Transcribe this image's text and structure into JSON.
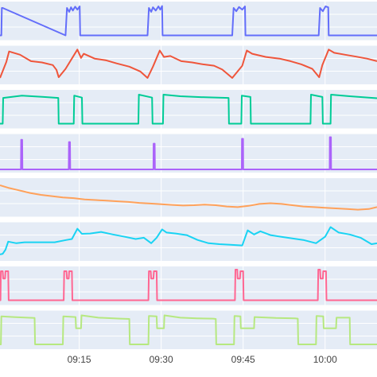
{
  "chart_data": {
    "type": "line",
    "title": "",
    "xlabel": "",
    "ylabel": "",
    "x_axis": {
      "type": "time",
      "range": [
        "09:00:30",
        "10:09:30"
      ],
      "tick_times": [
        "09:15:00",
        "09:30:00",
        "09:45:00",
        "10:00:00"
      ],
      "tick_labels": [
        "09:15",
        "09:30",
        "09:45",
        "10:00"
      ]
    },
    "background": "#e5ecf6",
    "gridlines": true,
    "legend": "none",
    "panels": [
      {
        "color": "#636efa",
        "ylim": [
          0,
          1
        ],
        "x": [
          "09:00:30",
          "09:00:45",
          "09:00:50",
          "09:01:00",
          "09:12:30",
          "09:12:45",
          "09:13:10",
          "09:13:30",
          "09:13:50",
          "09:14:15",
          "09:14:40",
          "09:15:05",
          "09:15:10",
          "09:15:25",
          "09:27:30",
          "09:27:45",
          "09:28:10",
          "09:28:30",
          "09:29:00",
          "09:29:30",
          "09:29:50",
          "09:30:10",
          "09:30:15",
          "09:30:30",
          "09:43:00",
          "09:43:15",
          "09:43:45",
          "09:44:15",
          "09:44:50",
          "09:45:20",
          "09:45:25",
          "09:45:40",
          "09:58:50",
          "09:59:05",
          "09:59:35",
          "10:00:05",
          "10:00:35",
          "10:00:40",
          "10:00:55",
          "10:09:30"
        ],
        "y": [
          0.05,
          0.05,
          0.9,
          0.9,
          0.05,
          0.9,
          0.78,
          0.92,
          0.82,
          0.94,
          0.85,
          0.95,
          0.05,
          0.05,
          0.05,
          0.9,
          0.78,
          0.92,
          0.82,
          0.95,
          0.85,
          0.96,
          0.05,
          0.05,
          0.05,
          0.9,
          0.8,
          0.93,
          0.85,
          0.95,
          0.05,
          0.05,
          0.05,
          0.9,
          0.8,
          0.95,
          0.92,
          0.05,
          0.05,
          0.05
        ]
      },
      {
        "color": "#ef553b",
        "ylim": [
          0,
          1
        ],
        "x": [
          "09:00:30",
          "09:01:40",
          "09:02:10",
          "09:04:10",
          "09:06:10",
          "09:08:10",
          "09:10:10",
          "09:10:50",
          "09:11:15",
          "09:12:30",
          "09:14:40",
          "09:15:20",
          "09:15:50",
          "09:17:50",
          "09:19:50",
          "09:21:50",
          "09:24:10",
          "09:26:10",
          "09:27:30",
          "09:28:30",
          "09:29:45",
          "09:30:30",
          "09:31:40",
          "09:33:40",
          "09:35:40",
          "09:37:40",
          "09:39:40",
          "09:41:10",
          "09:43:00",
          "09:44:50",
          "09:45:40",
          "09:46:40",
          "09:49:10",
          "09:51:40",
          "09:53:40",
          "09:55:40",
          "09:57:40",
          "09:58:55",
          "09:59:30",
          "10:00:40",
          "10:01:40",
          "10:03:40",
          "10:05:40",
          "10:07:40",
          "10:09:30"
        ],
        "y": [
          0.1,
          0.6,
          0.92,
          0.82,
          0.62,
          0.58,
          0.5,
          0.35,
          0.12,
          0.38,
          0.98,
          0.72,
          0.85,
          0.7,
          0.65,
          0.55,
          0.45,
          0.3,
          0.1,
          0.45,
          0.95,
          0.75,
          0.78,
          0.62,
          0.58,
          0.52,
          0.48,
          0.36,
          0.1,
          0.48,
          0.95,
          0.85,
          0.75,
          0.7,
          0.62,
          0.52,
          0.38,
          0.12,
          0.5,
          0.98,
          0.88,
          0.82,
          0.76,
          0.7,
          0.62
        ]
      },
      {
        "color": "#00cc96",
        "ylim": [
          0,
          1
        ],
        "x": [
          "09:00:30",
          "09:01:00",
          "09:01:05",
          "09:04:30",
          "09:08:30",
          "09:11:10",
          "09:11:15",
          "09:14:00",
          "09:14:05",
          "09:15:30",
          "09:15:35",
          "09:18:00",
          "09:22:00",
          "09:25:50",
          "09:25:55",
          "09:28:20",
          "09:28:25",
          "09:30:20",
          "09:30:25",
          "09:33:30",
          "09:38:00",
          "09:42:20",
          "09:42:25",
          "09:44:40",
          "09:44:45",
          "09:46:20",
          "09:46:25",
          "09:48:30",
          "09:53:00",
          "09:57:20",
          "09:57:25",
          "09:59:30",
          "09:59:35",
          "10:01:00",
          "10:01:05",
          "10:04:30",
          "10:09:30"
        ],
        "y": [
          0.05,
          0.05,
          0.85,
          0.92,
          0.88,
          0.85,
          0.05,
          0.05,
          0.92,
          0.86,
          0.05,
          0.05,
          0.05,
          0.05,
          0.95,
          0.86,
          0.05,
          0.05,
          0.95,
          0.9,
          0.87,
          0.85,
          0.05,
          0.05,
          0.92,
          0.88,
          0.05,
          0.05,
          0.05,
          0.05,
          0.95,
          0.88,
          0.05,
          0.05,
          0.95,
          0.9,
          0.84
        ]
      },
      {
        "color": "#ab63fa",
        "ylim": [
          0,
          1
        ],
        "x": [
          "09:00:30",
          "09:04:20",
          "09:04:22",
          "09:04:34",
          "09:04:36",
          "09:13:05",
          "09:13:07",
          "09:13:19",
          "09:13:21",
          "09:28:35",
          "09:28:37",
          "09:28:49",
          "09:28:51",
          "09:44:45",
          "09:44:47",
          "09:44:59",
          "09:45:01",
          "10:00:50",
          "10:00:52",
          "10:01:04",
          "10:01:06",
          "10:09:30"
        ],
        "y": [
          0,
          0,
          0.92,
          0.92,
          0,
          0,
          0.85,
          0.85,
          0,
          0,
          0.8,
          0.8,
          0,
          0,
          0.95,
          0.95,
          0,
          0,
          1,
          1,
          0,
          0
        ]
      },
      {
        "color": "#ffa15a",
        "ylim": [
          0,
          1
        ],
        "x": [
          "09:00:30",
          "09:02:00",
          "09:04:00",
          "09:06:00",
          "09:08:00",
          "09:10:00",
          "09:12:00",
          "09:14:00",
          "09:16:00",
          "09:18:00",
          "09:20:00",
          "09:22:00",
          "09:24:00",
          "09:26:00",
          "09:28:00",
          "09:30:00",
          "09:32:00",
          "09:34:00",
          "09:36:00",
          "09:38:00",
          "09:40:00",
          "09:42:00",
          "09:44:00",
          "09:46:00",
          "09:48:00",
          "09:50:00",
          "09:52:00",
          "09:54:00",
          "09:56:00",
          "09:58:00",
          "10:00:00",
          "10:02:00",
          "10:04:00",
          "10:06:00",
          "10:08:00",
          "10:09:30"
        ],
        "y": [
          0.88,
          0.8,
          0.72,
          0.64,
          0.58,
          0.54,
          0.5,
          0.48,
          0.44,
          0.42,
          0.4,
          0.38,
          0.36,
          0.33,
          0.31,
          0.29,
          0.27,
          0.25,
          0.26,
          0.28,
          0.26,
          0.22,
          0.2,
          0.24,
          0.3,
          0.32,
          0.3,
          0.26,
          0.22,
          0.2,
          0.18,
          0.16,
          0.14,
          0.12,
          0.14,
          0.2
        ]
      },
      {
        "color": "#19d3f3",
        "ylim": [
          0,
          1
        ],
        "x": [
          "09:00:30",
          "09:01:00",
          "09:01:30",
          "09:02:00",
          "09:03:30",
          "09:05:00",
          "09:06:30",
          "09:08:00",
          "09:09:10",
          "09:10:30",
          "09:12:40",
          "09:13:40",
          "09:14:40",
          "09:15:30",
          "09:17:00",
          "09:19:00",
          "09:21:10",
          "09:23:20",
          "09:25:20",
          "09:26:50",
          "09:28:10",
          "09:29:10",
          "09:30:10",
          "09:31:00",
          "09:32:40",
          "09:34:40",
          "09:36:40",
          "09:38:40",
          "09:40:40",
          "09:42:40",
          "09:44:50",
          "09:45:50",
          "09:47:00",
          "09:48:10",
          "09:50:00",
          "09:52:00",
          "09:54:00",
          "09:56:00",
          "09:58:20",
          "10:00:00",
          "10:01:00",
          "10:02:30",
          "10:04:30",
          "10:06:30",
          "10:08:30",
          "10:09:30"
        ],
        "y": [
          0.1,
          0.12,
          0.25,
          0.5,
          0.45,
          0.48,
          0.48,
          0.48,
          0.48,
          0.48,
          0.55,
          0.58,
          0.9,
          0.74,
          0.75,
          0.8,
          0.72,
          0.65,
          0.58,
          0.62,
          0.45,
          0.62,
          0.88,
          0.78,
          0.75,
          0.7,
          0.55,
          0.45,
          0.42,
          0.4,
          0.38,
          0.85,
          0.72,
          0.82,
          0.7,
          0.65,
          0.6,
          0.55,
          0.45,
          0.65,
          0.95,
          0.78,
          0.72,
          0.62,
          0.42,
          0.45
        ]
      },
      {
        "color": "#ff6692",
        "ylim": [
          0,
          1
        ],
        "x": [
          "09:00:30",
          "09:00:35",
          "09:00:40",
          "09:01:00",
          "09:01:05",
          "09:01:25",
          "09:01:30",
          "09:02:00",
          "09:02:05",
          "09:12:10",
          "09:12:15",
          "09:12:40",
          "09:12:45",
          "09:13:05",
          "09:13:10",
          "09:13:40",
          "09:13:45",
          "09:27:40",
          "09:27:45",
          "09:28:05",
          "09:28:10",
          "09:28:35",
          "09:28:40",
          "09:29:10",
          "09:29:15",
          "09:43:30",
          "09:43:35",
          "09:43:55",
          "09:44:00",
          "09:44:25",
          "09:44:30",
          "09:45:00",
          "09:45:05",
          "09:58:40",
          "09:58:45",
          "09:59:05",
          "09:59:10",
          "09:59:35",
          "09:59:40",
          "10:00:10",
          "10:00:15",
          "10:09:30"
        ],
        "y": [
          0.05,
          0.05,
          0.95,
          0.95,
          0.72,
          0.72,
          0.95,
          0.95,
          0.05,
          0.05,
          0.95,
          0.95,
          0.72,
          0.72,
          0.95,
          0.95,
          0.05,
          0.05,
          0.95,
          0.95,
          0.72,
          0.72,
          0.95,
          0.95,
          0.05,
          0.05,
          1,
          1,
          0.72,
          0.72,
          0.95,
          0.95,
          0.05,
          0.05,
          1,
          1,
          0.72,
          0.72,
          0.95,
          0.95,
          0.05,
          0.05
        ]
      },
      {
        "color": "#b6e880",
        "ylim": [
          0,
          1
        ],
        "x": [
          "09:00:30",
          "09:00:40",
          "09:00:45",
          "09:03:00",
          "09:05:30",
          "09:06:50",
          "09:06:55",
          "09:12:00",
          "09:12:05",
          "09:14:20",
          "09:14:25",
          "09:15:20",
          "09:15:25",
          "09:18:30",
          "09:22:30",
          "09:24:10",
          "09:24:15",
          "09:27:40",
          "09:27:45",
          "09:29:10",
          "09:29:15",
          "09:30:30",
          "09:30:35",
          "09:33:30",
          "09:36:30",
          "09:39:30",
          "09:40:00",
          "09:40:05",
          "09:43:20",
          "09:43:25",
          "09:44:30",
          "09:44:35",
          "09:47:00",
          "09:47:05",
          "09:51:00",
          "09:54:30",
          "09:55:00",
          "09:55:05",
          "09:58:20",
          "09:58:25",
          "09:59:40",
          "09:59:45",
          "10:02:00",
          "10:02:05",
          "10:04:30",
          "10:04:35",
          "10:09:30"
        ],
        "y": [
          0.05,
          0.05,
          0.92,
          0.9,
          0.88,
          0.87,
          0.05,
          0.05,
          0.92,
          0.9,
          0.55,
          0.55,
          0.95,
          0.88,
          0.85,
          0.84,
          0.05,
          0.05,
          0.93,
          0.92,
          0.55,
          0.55,
          0.95,
          0.88,
          0.86,
          0.85,
          0.84,
          0.05,
          0.05,
          0.93,
          0.92,
          0.55,
          0.55,
          0.9,
          0.87,
          0.86,
          0.85,
          0.05,
          0.05,
          0.93,
          0.92,
          0.55,
          0.55,
          0.88,
          0.88,
          0.05,
          0.05
        ]
      }
    ]
  }
}
